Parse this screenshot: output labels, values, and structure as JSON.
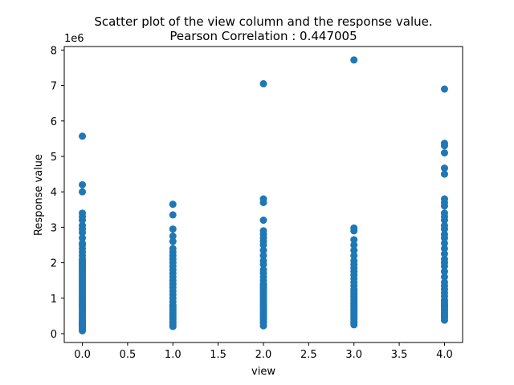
{
  "chart_data": {
    "type": "scatter",
    "title_line1": "Scatter plot of the view column and the response value.",
    "title_line2": "Pearson Correlation : 0.447005",
    "xlabel": "view",
    "ylabel": "Response value",
    "y_offset_label": "1e6",
    "xlim": [
      -0.2,
      4.2
    ],
    "ylim": [
      -0.25,
      8.1
    ],
    "x_ticks": [
      0.0,
      0.5,
      1.0,
      1.5,
      2.0,
      2.5,
      3.0,
      3.5,
      4.0
    ],
    "x_tick_labels": [
      "0.0",
      "0.5",
      "1.0",
      "1.5",
      "2.0",
      "2.5",
      "3.0",
      "3.5",
      "4.0"
    ],
    "y_ticks": [
      0,
      1,
      2,
      3,
      4,
      5,
      6,
      7,
      8
    ],
    "y_tick_labels": [
      "0",
      "1",
      "2",
      "3",
      "4",
      "5",
      "6",
      "7",
      "8"
    ],
    "marker_color": "#1f77b4",
    "grid": false,
    "series": [
      {
        "name": "",
        "x": [
          0,
          0,
          0,
          0,
          0,
          0,
          0,
          0,
          0,
          0,
          0,
          0,
          0,
          0,
          0,
          0,
          0,
          0,
          0,
          0,
          0,
          0,
          0,
          0,
          0,
          0,
          0,
          0,
          0,
          0,
          0,
          0,
          0,
          0,
          0,
          0,
          0,
          0,
          0,
          0,
          0,
          0,
          0,
          0,
          0,
          0,
          0,
          0,
          0,
          0,
          0,
          0,
          0,
          0,
          0,
          0,
          0,
          0,
          0,
          0,
          1,
          1,
          1,
          1,
          1,
          1,
          1,
          1,
          1,
          1,
          1,
          1,
          1,
          1,
          1,
          1,
          1,
          1,
          1,
          1,
          1,
          1,
          1,
          1,
          1,
          1,
          1,
          1,
          1,
          1,
          1,
          1,
          1,
          1,
          2,
          2,
          2,
          2,
          2,
          2,
          2,
          2,
          2,
          2,
          2,
          2,
          2,
          2,
          2,
          2,
          2,
          2,
          2,
          2,
          2,
          2,
          2,
          2,
          2,
          2,
          2,
          2,
          2,
          2,
          2,
          2,
          2,
          2,
          2,
          2,
          2,
          2,
          2,
          2,
          2,
          3,
          3,
          3,
          3,
          3,
          3,
          3,
          3,
          3,
          3,
          3,
          3,
          3,
          3,
          3,
          3,
          3,
          3,
          3,
          3,
          3,
          3,
          3,
          3,
          3,
          3,
          3,
          3,
          3,
          3,
          3,
          3,
          3,
          3,
          3,
          3,
          4,
          4,
          4,
          4,
          4,
          4,
          4,
          4,
          4,
          4,
          4,
          4,
          4,
          4,
          4,
          4,
          4,
          4,
          4,
          4,
          4,
          4,
          4,
          4,
          4,
          4,
          4,
          4,
          4,
          4,
          4,
          4,
          4,
          4,
          4,
          4,
          4,
          4,
          4,
          4,
          4
        ],
        "y": [
          0.08,
          0.12,
          0.16,
          0.2,
          0.25,
          0.3,
          0.35,
          0.4,
          0.45,
          0.5,
          0.55,
          0.6,
          0.65,
          0.7,
          0.75,
          0.8,
          0.85,
          0.9,
          0.95,
          1.0,
          1.05,
          1.1,
          1.15,
          1.2,
          1.25,
          1.3,
          1.35,
          1.4,
          1.45,
          1.5,
          1.55,
          1.6,
          1.65,
          1.7,
          1.75,
          1.8,
          1.85,
          1.9,
          1.95,
          2.0,
          2.05,
          2.1,
          2.2,
          2.3,
          2.4,
          2.5,
          2.55,
          2.7,
          2.85,
          2.95,
          3.05,
          3.2,
          3.3,
          3.4,
          4.0,
          4.2,
          5.57,
          0.22,
          0.28,
          0.33,
          0.2,
          0.3,
          0.4,
          0.5,
          0.6,
          0.7,
          0.8,
          0.9,
          1.0,
          1.1,
          1.2,
          1.3,
          1.4,
          1.5,
          1.6,
          1.7,
          1.8,
          1.9,
          2.0,
          2.1,
          2.2,
          2.3,
          2.4,
          2.6,
          2.75,
          2.95,
          3.35,
          3.65,
          0.25,
          0.35,
          0.45,
          0.55,
          0.65,
          0.75,
          0.22,
          0.3,
          0.4,
          0.5,
          0.6,
          0.7,
          0.8,
          0.9,
          1.0,
          1.1,
          1.2,
          1.3,
          1.4,
          1.5,
          1.6,
          1.7,
          1.8,
          1.95,
          2.05,
          2.2,
          2.35,
          2.5,
          2.6,
          2.7,
          2.8,
          2.9,
          3.2,
          3.7,
          3.8,
          7.05,
          0.35,
          0.45,
          0.55,
          0.65,
          0.75,
          0.85,
          0.95,
          1.05,
          1.15,
          1.25,
          1.35,
          0.25,
          0.35,
          0.45,
          0.55,
          0.65,
          0.75,
          0.85,
          0.95,
          1.05,
          1.15,
          1.25,
          1.35,
          1.45,
          1.55,
          1.65,
          1.75,
          1.85,
          1.95,
          2.05,
          2.2,
          2.35,
          2.5,
          2.65,
          2.9,
          2.98,
          7.72,
          0.3,
          0.4,
          0.5,
          0.6,
          0.7,
          0.8,
          0.9,
          1.0,
          1.1,
          1.2,
          0.38,
          0.45,
          0.55,
          0.65,
          0.75,
          0.85,
          0.95,
          1.05,
          1.15,
          1.25,
          1.35,
          1.45,
          1.6,
          1.75,
          1.9,
          2.0,
          2.1,
          2.25,
          2.4,
          2.55,
          2.7,
          2.8,
          2.95,
          3.05,
          3.2,
          3.3,
          3.4,
          3.6,
          3.7,
          3.8,
          4.5,
          4.67,
          5.1,
          5.3,
          5.37,
          6.9,
          0.5,
          0.6,
          0.7,
          0.8,
          0.9
        ]
      }
    ]
  }
}
